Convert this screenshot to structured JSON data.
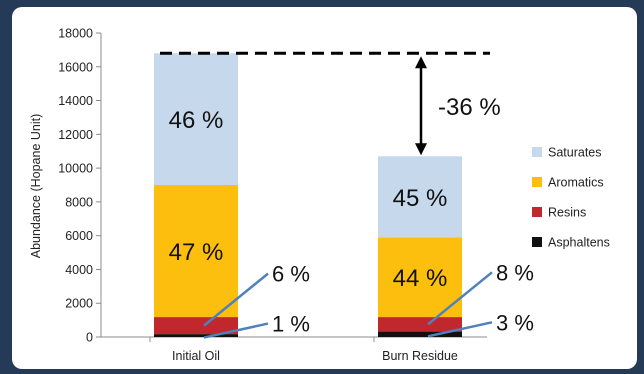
{
  "chart_data": {
    "type": "bar",
    "stacked": true,
    "ylabel": "Abundance (Hopane Unit)",
    "ylim": [
      0,
      18000
    ],
    "yticks": [
      0,
      2000,
      4000,
      6000,
      8000,
      10000,
      12000,
      14000,
      16000,
      18000
    ],
    "grid": false,
    "legend_position": "right",
    "categories": [
      "Initial Oil",
      "Burn Residue"
    ],
    "series": [
      {
        "name": "Asphaltens",
        "color": "#111111",
        "values": [
          170,
          320
        ]
      },
      {
        "name": "Resins",
        "color": "#c0282d",
        "values": [
          1010,
          860
        ]
      },
      {
        "name": "Aromatics",
        "color": "#fcbf0e",
        "values": [
          7820,
          4720
        ]
      },
      {
        "name": "Saturates",
        "color": "#c6d8ec",
        "values": [
          7800,
          4800
        ]
      }
    ],
    "segment_labels": [
      {
        "category": 0,
        "series": "Saturates",
        "text": "46 %"
      },
      {
        "category": 0,
        "series": "Aromatics",
        "text": "47 %"
      },
      {
        "category": 1,
        "series": "Saturates",
        "text": "45 %"
      },
      {
        "category": 1,
        "series": "Aromatics",
        "text": "44 %"
      }
    ],
    "callouts": [
      {
        "category": 0,
        "series": "Resins",
        "text": "6 %"
      },
      {
        "category": 0,
        "series": "Asphaltens",
        "text": "1 %"
      },
      {
        "category": 1,
        "series": "Resins",
        "text": "8 %"
      },
      {
        "category": 1,
        "series": "Asphaltens",
        "text": "3 %"
      }
    ],
    "reference_line": {
      "y": 16800,
      "style": "dashed"
    },
    "change_annotation": {
      "text": "-36 %",
      "from": 16800,
      "to": 10700
    }
  }
}
